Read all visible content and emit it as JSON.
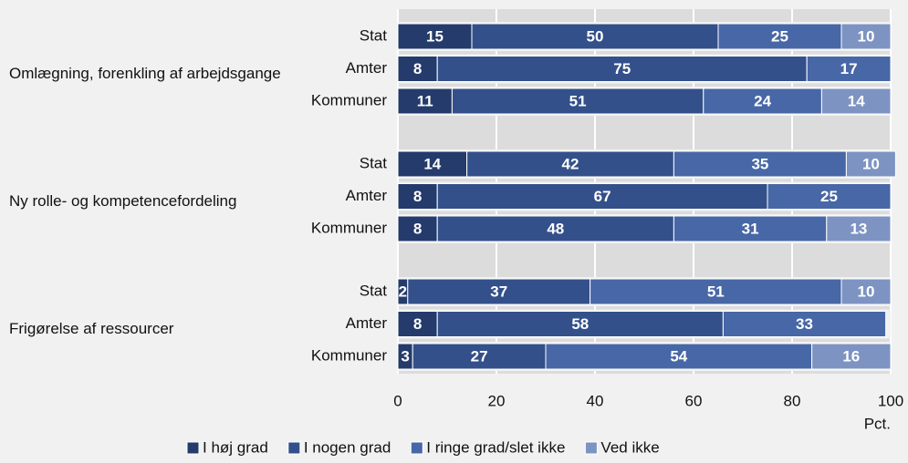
{
  "chart_data": {
    "type": "stacked_barh",
    "group_labels": [
      "Omlægning, forenkling af arbejdsgange",
      "Ny rolle- og kompetencefordeling",
      "Frigørelse af ressourcer"
    ],
    "categories": [
      "Stat",
      "Amter",
      "Kommuner",
      "Stat",
      "Amter",
      "Kommuner",
      "Stat",
      "Amter",
      "Kommuner"
    ],
    "series": [
      {
        "name": "I høj grad",
        "color": "#243b6b",
        "values": [
          15,
          8,
          11,
          14,
          8,
          8,
          2,
          8,
          3
        ]
      },
      {
        "name": "I nogen grad",
        "color": "#33508a",
        "values": [
          50,
          75,
          51,
          42,
          67,
          48,
          37,
          58,
          27
        ]
      },
      {
        "name": "I ringe grad/slet ikke",
        "color": "#4767a6",
        "values": [
          25,
          17,
          24,
          35,
          25,
          31,
          51,
          33,
          54
        ]
      },
      {
        "name": "Ved ikke",
        "color": "#7d93c2",
        "values": [
          10,
          null,
          14,
          10,
          null,
          13,
          10,
          null,
          16
        ]
      }
    ],
    "xlim": [
      0,
      100
    ],
    "xticks": [
      0,
      20,
      40,
      60,
      80,
      100
    ],
    "xlabel": "Pct.",
    "grid": true
  }
}
